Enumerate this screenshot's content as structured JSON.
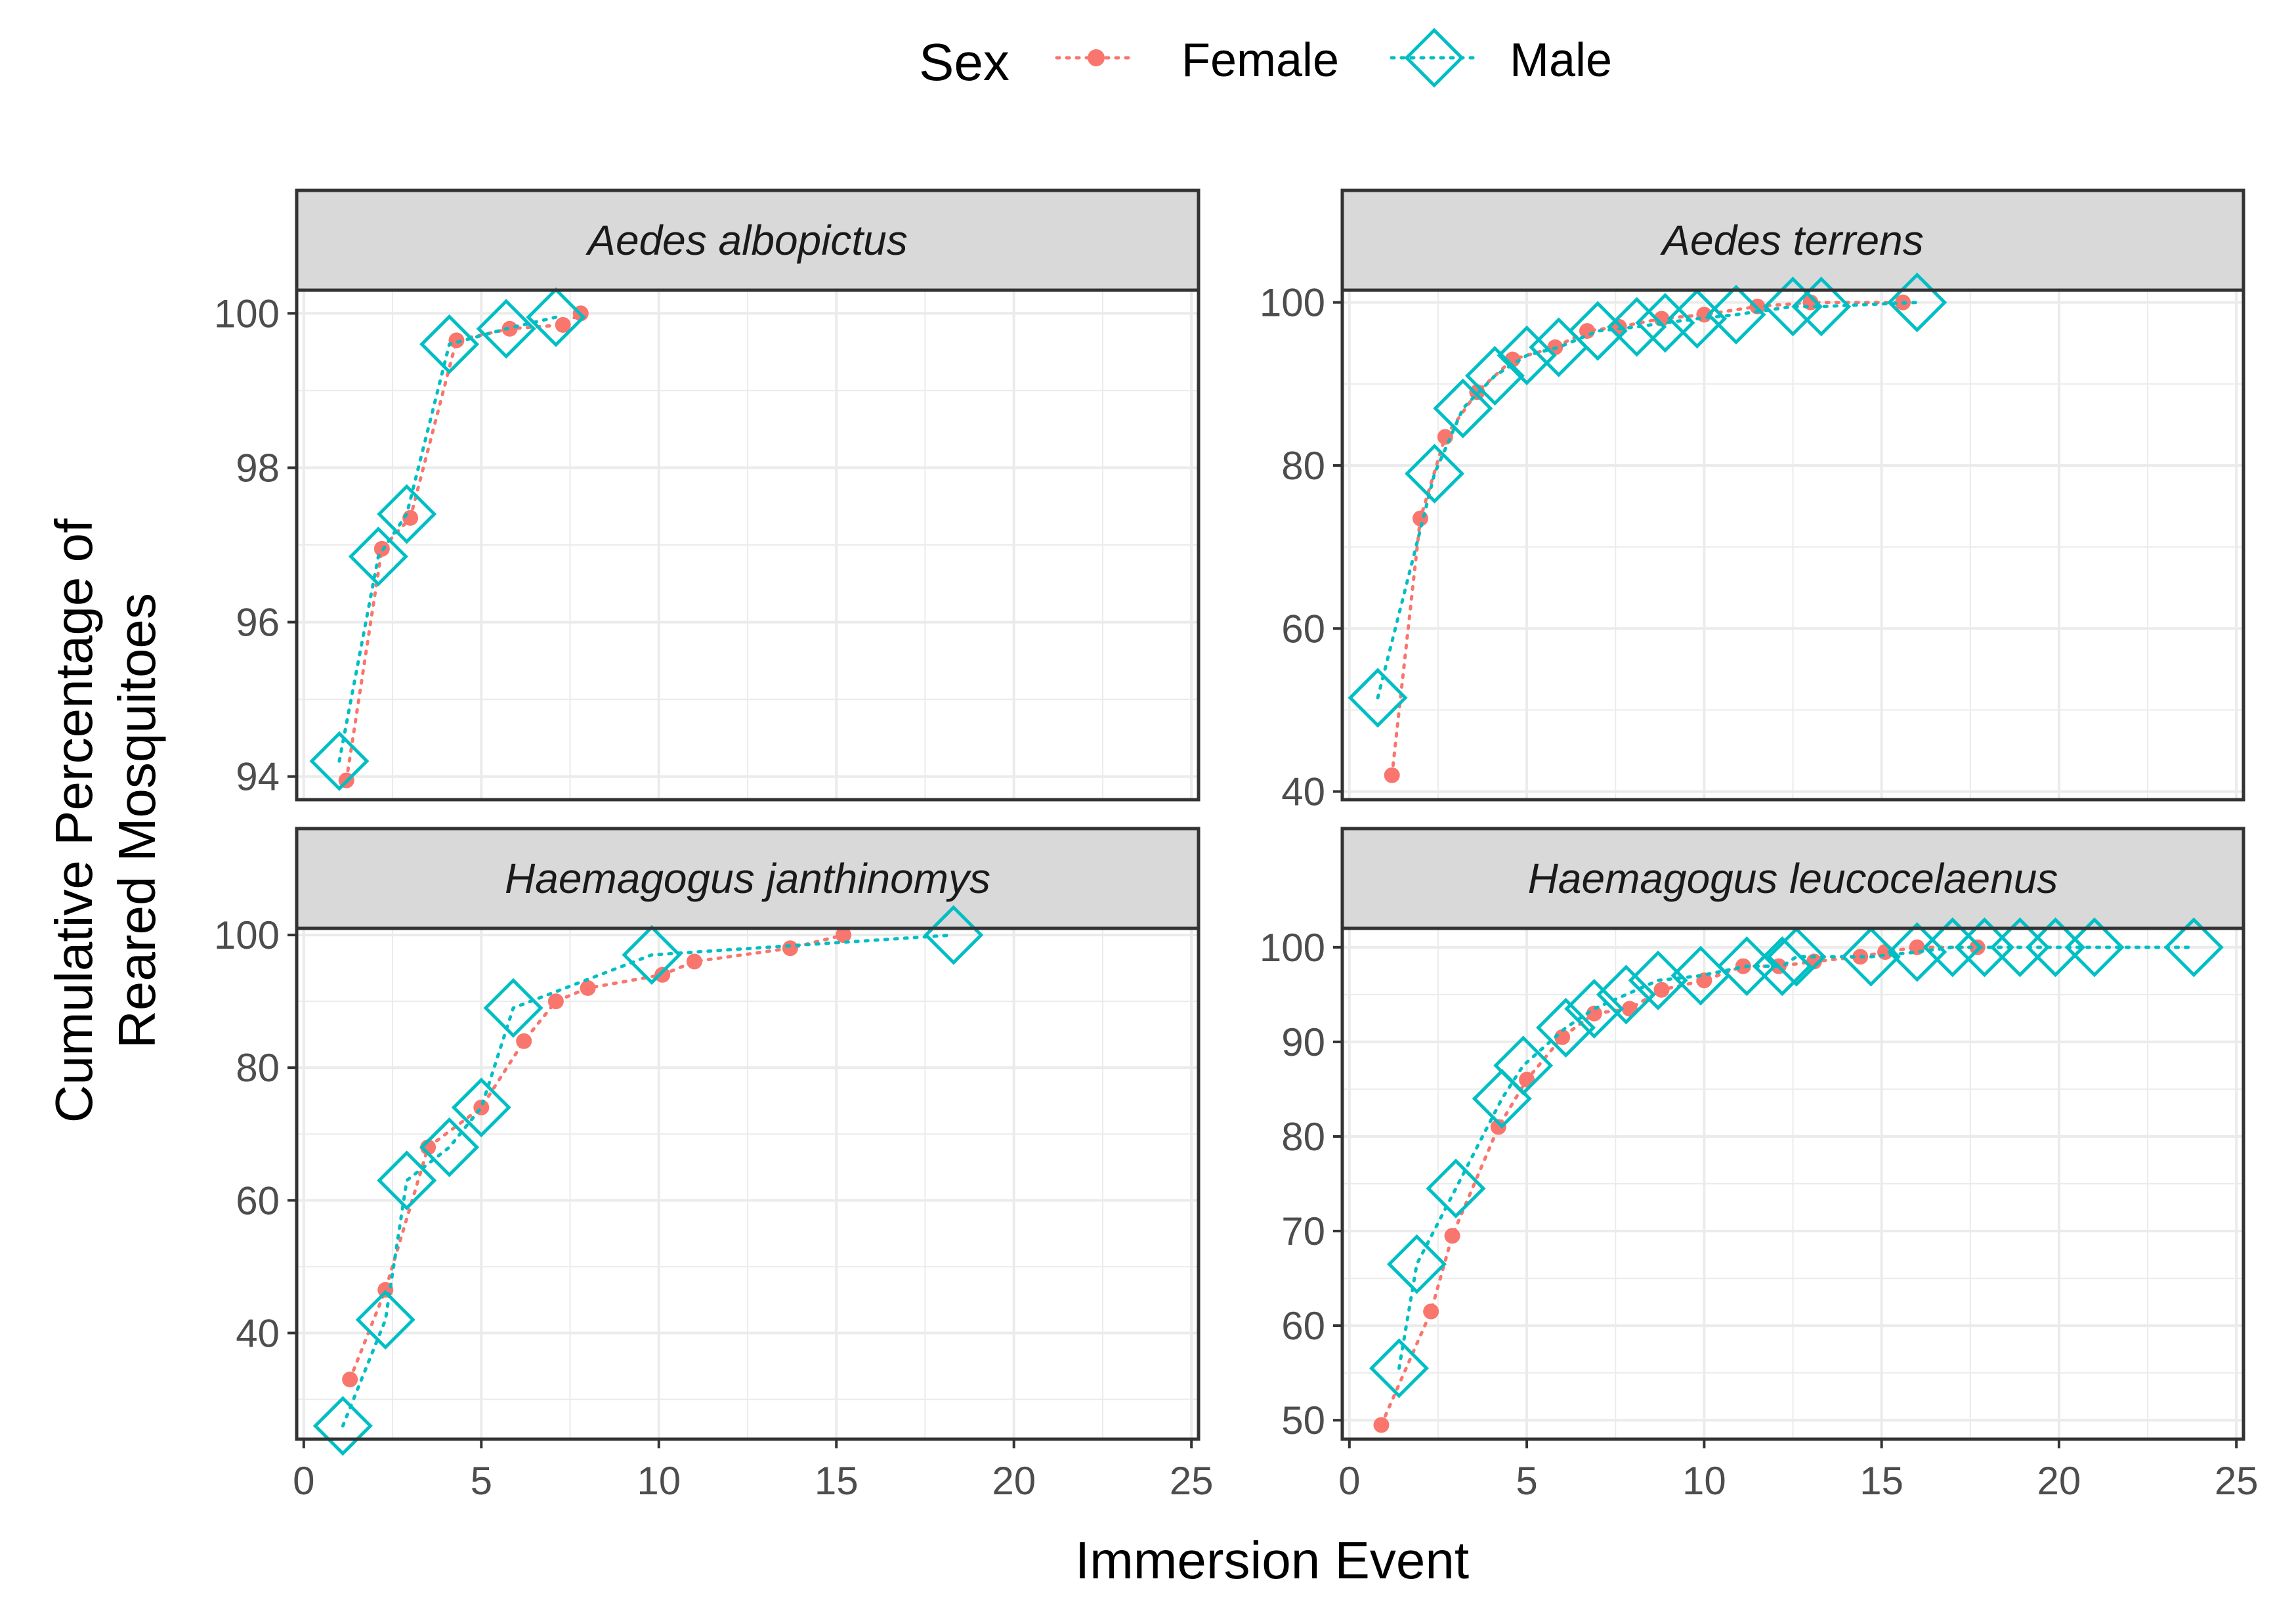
{
  "chart_data": {
    "type": "scatter",
    "xlabel": "Immersion Event",
    "ylabel_lines": [
      "Cumulative Percentage of",
      "Reared Mosquitoes"
    ],
    "legend": {
      "title": "Sex",
      "entries": [
        {
          "key": "female",
          "label": "Female"
        },
        {
          "key": "male",
          "label": "Male"
        }
      ]
    },
    "colors": {
      "female": "#F8766D",
      "male": "#00BFC4",
      "grid": "#EBEBEB",
      "panel_border": "#333333",
      "strip_fill": "#D9D9D9"
    },
    "xlim": [
      -0.2,
      25.2
    ],
    "x_ticks": [
      0,
      5,
      10,
      15,
      20,
      25
    ],
    "x_tick_labels": [
      "0",
      "5",
      "10",
      "15",
      "20",
      "25"
    ],
    "panels": [
      {
        "id": "aedes-albopictus",
        "title": "Aedes albopictus",
        "ylim": [
          93.7,
          100.3
        ],
        "y_ticks": [
          94,
          96,
          98,
          100
        ],
        "y_tick_labels": [
          "94",
          "96",
          "98",
          "100"
        ],
        "series": {
          "female": {
            "x": [
              1.2,
              2.2,
              3,
              4.3,
              5.8,
              7.3,
              7.8
            ],
            "y": [
              93.95,
              96.95,
              97.35,
              99.65,
              99.8,
              99.85,
              100
            ]
          },
          "male": {
            "x": [
              1,
              2.1,
              2.9,
              4.1,
              5.7,
              7.1
            ],
            "y": [
              94.2,
              96.85,
              97.4,
              99.6,
              99.8,
              99.95
            ]
          }
        }
      },
      {
        "id": "aedes-terrens",
        "title": "Aedes terrens",
        "ylim": [
          39,
          101.5
        ],
        "y_ticks": [
          40,
          60,
          80,
          100
        ],
        "y_tick_labels": [
          "40",
          "60",
          "80",
          "100"
        ],
        "series": {
          "female": {
            "x": [
              1.2,
              2,
              2.7,
              3.6,
              4.6,
              5.8,
              6.7,
              7.6,
              8.8,
              10,
              11.5,
              13,
              15.6
            ],
            "y": [
              42,
              73.5,
              83.5,
              89,
              93,
              94.5,
              96.5,
              97,
              98,
              98.5,
              99.5,
              100,
              100
            ]
          },
          "male": {
            "x": [
              0.8,
              2.4,
              3.2,
              4.1,
              5,
              5.9,
              7,
              8.1,
              8.9,
              9.8,
              10.9,
              12.5,
              13.3,
              16
            ],
            "y": [
              51.5,
              79,
              87,
              91,
              93.5,
              94.5,
              96.5,
              97,
              97.5,
              98,
              98.5,
              99.5,
              99.5,
              100
            ]
          }
        }
      },
      {
        "id": "haemagogus-janthinomys",
        "title": "Haemagogus janthinomys",
        "ylim": [
          24,
          101
        ],
        "y_ticks": [
          40,
          60,
          80,
          100
        ],
        "y_tick_labels": [
          "40",
          "60",
          "80",
          "100"
        ],
        "series": {
          "female": {
            "x": [
              1.3,
              2.3,
              3.5,
              5,
              6.2,
              7.1,
              8,
              10.1,
              11,
              13.7,
              15.2
            ],
            "y": [
              33,
              46.5,
              68,
              74,
              84,
              90,
              92,
              94,
              96,
              98,
              100
            ]
          },
          "male": {
            "x": [
              1.1,
              2.3,
              2.9,
              4.1,
              5,
              5.9,
              9.8,
              18.3
            ],
            "y": [
              26,
              42,
              63,
              68,
              74,
              89,
              97,
              100
            ]
          }
        }
      },
      {
        "id": "haemagogus-leucocelaenus",
        "title": "Haemagogus leucocelaenus",
        "ylim": [
          48,
          102
        ],
        "y_ticks": [
          50,
          60,
          70,
          80,
          90,
          100
        ],
        "y_tick_labels": [
          "50",
          "60",
          "70",
          "80",
          "90",
          "100"
        ],
        "series": {
          "female": {
            "x": [
              0.9,
              2.3,
              2.9,
              4.2,
              5,
              6,
              6.9,
              7.9,
              8.8,
              10,
              11.1,
              12.1,
              13.1,
              14.4,
              15.1,
              16,
              17.7
            ],
            "y": [
              49.5,
              61.5,
              69.5,
              81,
              86,
              90.5,
              93,
              93.5,
              95.5,
              96.5,
              98,
              98,
              98.5,
              99,
              99.5,
              100,
              100
            ]
          },
          "male": {
            "x": [
              1.4,
              1.9,
              3,
              4.3,
              4.9,
              6.1,
              6.9,
              7.8,
              8.7,
              9.9,
              11.2,
              12.2,
              12.6,
              14.7,
              16,
              17,
              17.9,
              18.9,
              19.9,
              21,
              23.8
            ],
            "y": [
              55.5,
              66.5,
              74.5,
              84,
              87.5,
              91.5,
              93.5,
              95,
              96.5,
              97,
              98,
              98,
              99,
              99,
              99.5,
              100,
              100,
              100,
              100,
              100,
              100
            ]
          }
        }
      }
    ]
  }
}
